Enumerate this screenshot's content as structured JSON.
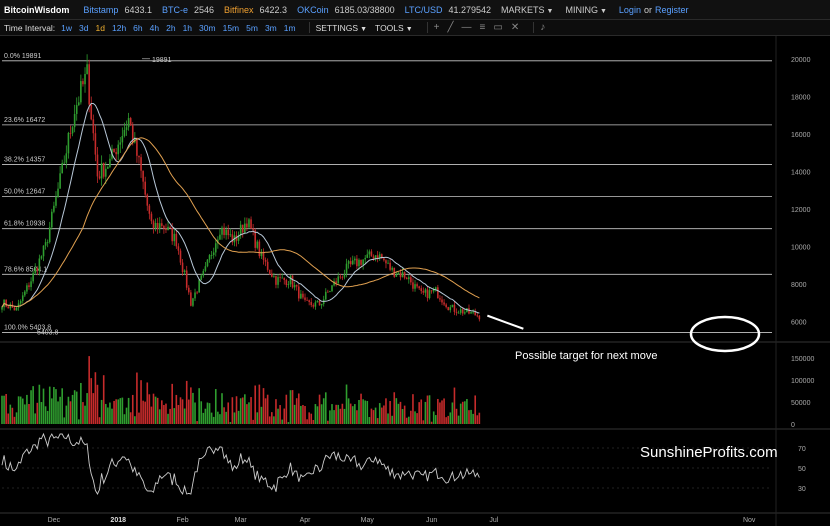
{
  "brand": "BitcoinWisdom",
  "tickers": [
    {
      "exchange": "Bitstamp",
      "price": "6433.1"
    },
    {
      "exchange": "BTC-e",
      "price": "2546"
    },
    {
      "exchange": "Bitfinex",
      "price": "6422.3"
    },
    {
      "exchange": "OKCoin",
      "price": "6185.03/38800"
    },
    {
      "exchange": "LTC/USD",
      "price": "41.279542"
    }
  ],
  "menus": {
    "markets": "MARKETS",
    "mining": "MINING"
  },
  "auth": {
    "login": "Login",
    "or": "or",
    "register": "Register"
  },
  "toolbar": {
    "time_interval_label": "Time Interval:",
    "intervals": [
      "1w",
      "3d",
      "1d",
      "12h",
      "6h",
      "4h",
      "2h",
      "1h",
      "30m",
      "15m",
      "5m",
      "3m",
      "1m"
    ],
    "active_interval": "1d",
    "settings": "SETTINGS",
    "tools": "TOOLS"
  },
  "fib_levels": [
    {
      "label": "0.0% 19891",
      "price": 19891
    },
    {
      "label": "23.6% 16472",
      "price": 16472
    },
    {
      "label": "38.2% 14357",
      "price": 14357
    },
    {
      "label": "50.0% 12647",
      "price": 12647
    },
    {
      "label": "61.8% 10938",
      "price": 10938
    },
    {
      "label": "78.6% 8504.1",
      "price": 8504.1
    },
    {
      "label": "100.0% 5403.8",
      "price": 5403.8
    }
  ],
  "price_markers": {
    "high": "19891",
    "low": "5403.8"
  },
  "price_axis": [
    "20000",
    "18000",
    "16000",
    "14000",
    "12000",
    "10000",
    "8000",
    "6000"
  ],
  "volume_axis": [
    "150000",
    "100000",
    "50000",
    "0"
  ],
  "oscillator_axis": [
    "70",
    "50",
    "30"
  ],
  "time_axis": [
    "Dec",
    "2018",
    "Feb",
    "Mar",
    "Apr",
    "May",
    "Jun",
    "Jul",
    "Nov"
  ],
  "annotation": "Possible target for next move",
  "watermark": "SunshineProfits.com",
  "colors": {
    "up": "#2f9e2f",
    "down": "#c62b2b",
    "ma_fast": "#b8c8d8",
    "ma_slow": "#e0a050",
    "link": "#5aa0ff",
    "active": "#f0b030"
  },
  "chart_data": {
    "type": "candlestick",
    "ylim": [
      5000,
      21000
    ],
    "close_path": [
      {
        "date": "2017-11-06",
        "close": 7000
      },
      {
        "date": "2017-11-13",
        "close": 6600
      },
      {
        "date": "2017-11-20",
        "close": 8200
      },
      {
        "date": "2017-11-27",
        "close": 10000
      },
      {
        "date": "2017-12-04",
        "close": 13500
      },
      {
        "date": "2017-12-11",
        "close": 17300
      },
      {
        "date": "2017-12-17",
        "close": 19200
      },
      {
        "date": "2017-12-22",
        "close": 13800
      },
      {
        "date": "2017-12-28",
        "close": 14500
      },
      {
        "date": "2018-01-06",
        "close": 16800
      },
      {
        "date": "2018-01-12",
        "close": 13900
      },
      {
        "date": "2018-01-17",
        "close": 11000
      },
      {
        "date": "2018-01-22",
        "close": 11200
      },
      {
        "date": "2018-01-29",
        "close": 10300
      },
      {
        "date": "2018-02-05",
        "close": 7000
      },
      {
        "date": "2018-02-12",
        "close": 8700
      },
      {
        "date": "2018-02-19",
        "close": 11000
      },
      {
        "date": "2018-02-26",
        "close": 10300
      },
      {
        "date": "2018-03-04",
        "close": 11400
      },
      {
        "date": "2018-03-11",
        "close": 9400
      },
      {
        "date": "2018-03-18",
        "close": 8200
      },
      {
        "date": "2018-03-25",
        "close": 8200
      },
      {
        "date": "2018-04-01",
        "close": 6900
      },
      {
        "date": "2018-04-08",
        "close": 6900
      },
      {
        "date": "2018-04-15",
        "close": 8000
      },
      {
        "date": "2018-04-22",
        "close": 8900
      },
      {
        "date": "2018-04-29",
        "close": 9300
      },
      {
        "date": "2018-05-06",
        "close": 9600
      },
      {
        "date": "2018-05-13",
        "close": 8700
      },
      {
        "date": "2018-05-20",
        "close": 8400
      },
      {
        "date": "2018-05-27",
        "close": 7400
      },
      {
        "date": "2018-06-03",
        "close": 7600
      },
      {
        "date": "2018-06-10",
        "close": 6700
      },
      {
        "date": "2018-06-17",
        "close": 6500
      },
      {
        "date": "2018-06-24",
        "close": 6300
      }
    ]
  }
}
